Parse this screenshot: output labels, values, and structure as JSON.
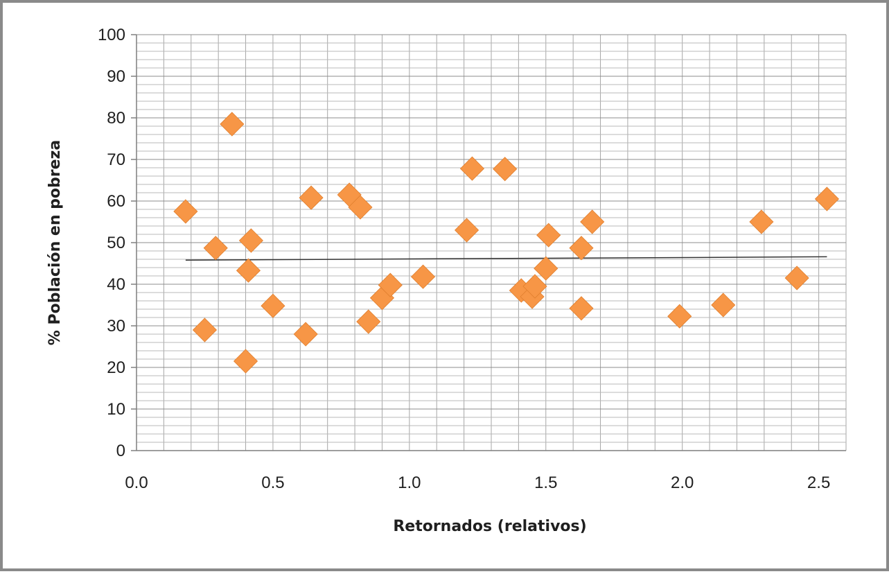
{
  "chart_data": {
    "type": "scatter",
    "xlabel": "Retornados (relativos)",
    "ylabel": "% Población en pobreza",
    "xlim": [
      0,
      2.6
    ],
    "ylim": [
      0,
      100
    ],
    "x_ticks": [
      "0.0",
      "0.5",
      "1.0",
      "1.5",
      "2.0",
      "2.5"
    ],
    "x_tick_values": [
      0,
      0.5,
      1.0,
      1.5,
      2.0,
      2.5
    ],
    "y_ticks": [
      "0",
      "10",
      "20",
      "30",
      "40",
      "50",
      "60",
      "70",
      "80",
      "90",
      "100"
    ],
    "y_tick_values": [
      0,
      10,
      20,
      30,
      40,
      50,
      60,
      70,
      80,
      90,
      100
    ],
    "grid": true,
    "marker": "diamond",
    "marker_color": "#F79646",
    "trendline": {
      "type": "linear",
      "x": [
        0.18,
        2.53
      ],
      "y": [
        45.8,
        46.6
      ],
      "color": "#333333"
    },
    "points": [
      {
        "x": 0.18,
        "y": 57.5
      },
      {
        "x": 0.25,
        "y": 29.0
      },
      {
        "x": 0.29,
        "y": 48.7
      },
      {
        "x": 0.35,
        "y": 78.5
      },
      {
        "x": 0.4,
        "y": 21.5
      },
      {
        "x": 0.41,
        "y": 43.3
      },
      {
        "x": 0.42,
        "y": 50.5
      },
      {
        "x": 0.5,
        "y": 34.8
      },
      {
        "x": 0.62,
        "y": 28.0
      },
      {
        "x": 0.64,
        "y": 60.8
      },
      {
        "x": 0.78,
        "y": 61.5
      },
      {
        "x": 0.82,
        "y": 58.5
      },
      {
        "x": 0.85,
        "y": 31.0
      },
      {
        "x": 0.9,
        "y": 36.7
      },
      {
        "x": 0.93,
        "y": 39.8
      },
      {
        "x": 1.05,
        "y": 41.8
      },
      {
        "x": 1.21,
        "y": 53.0
      },
      {
        "x": 1.23,
        "y": 67.8
      },
      {
        "x": 1.35,
        "y": 67.7
      },
      {
        "x": 1.41,
        "y": 38.5
      },
      {
        "x": 1.45,
        "y": 37.0
      },
      {
        "x": 1.46,
        "y": 39.5
      },
      {
        "x": 1.5,
        "y": 43.8
      },
      {
        "x": 1.51,
        "y": 51.8
      },
      {
        "x": 1.63,
        "y": 34.2
      },
      {
        "x": 1.63,
        "y": 48.7
      },
      {
        "x": 1.67,
        "y": 55.0
      },
      {
        "x": 1.99,
        "y": 32.3
      },
      {
        "x": 2.15,
        "y": 35.0
      },
      {
        "x": 2.29,
        "y": 55.0
      },
      {
        "x": 2.42,
        "y": 41.5
      },
      {
        "x": 2.53,
        "y": 60.5
      }
    ]
  }
}
